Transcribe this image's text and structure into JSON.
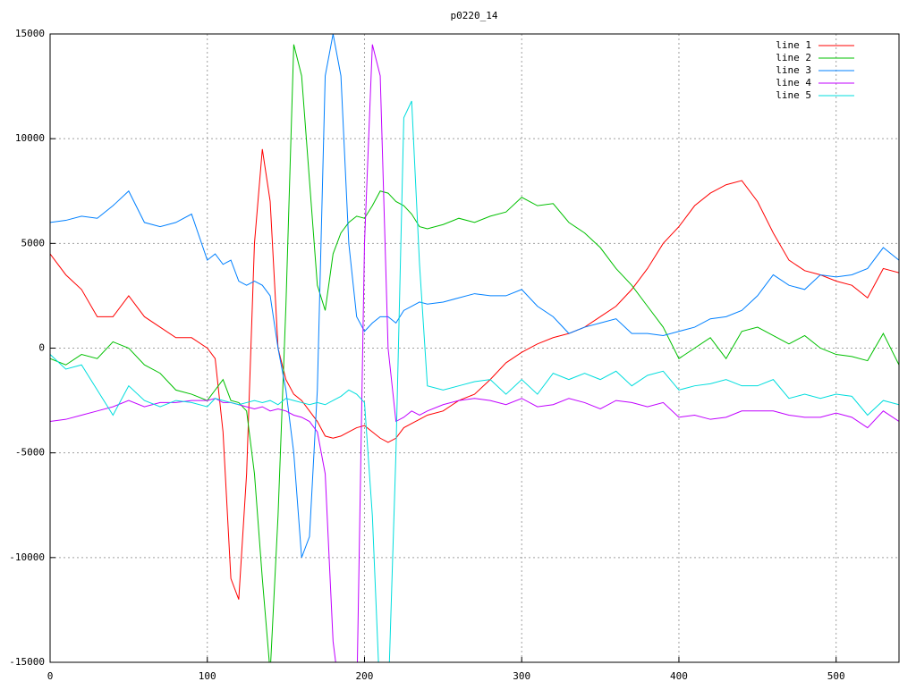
{
  "chart_data": {
    "type": "line",
    "title": "p0220_14",
    "x": [
      0,
      10,
      20,
      30,
      40,
      50,
      60,
      70,
      80,
      90,
      100,
      105,
      110,
      115,
      120,
      125,
      130,
      135,
      140,
      145,
      150,
      155,
      160,
      165,
      170,
      175,
      180,
      185,
      190,
      195,
      200,
      205,
      210,
      215,
      220,
      225,
      230,
      235,
      240,
      250,
      260,
      270,
      280,
      290,
      300,
      310,
      320,
      330,
      340,
      350,
      360,
      370,
      380,
      390,
      400,
      410,
      420,
      430,
      440,
      450,
      460,
      470,
      480,
      490,
      500,
      510,
      520,
      530,
      540
    ],
    "series": [
      {
        "name": "line 1",
        "color": "#ff0000",
        "values": [
          4500,
          3500,
          2800,
          1500,
          1500,
          2500,
          1500,
          1000,
          500,
          500,
          0,
          -500,
          -4000,
          -11000,
          -12000,
          -6000,
          5000,
          9500,
          7000,
          0,
          -1500,
          -2200,
          -2500,
          -3000,
          -3500,
          -4200,
          -4300,
          -4200,
          -4000,
          -3800,
          -3700,
          -4000,
          -4300,
          -4500,
          -4300,
          -3800,
          -3600,
          -3400,
          -3200,
          -3000,
          -2500,
          -2200,
          -1500,
          -700,
          -200,
          200,
          500,
          700,
          1000,
          1500,
          2000,
          2800,
          3800,
          5000,
          5800,
          6800,
          7400,
          7800,
          8000,
          7000,
          5500,
          4200,
          3700,
          3500,
          3200,
          3000,
          2400,
          3800,
          3600
        ]
      },
      {
        "name": "line 2",
        "color": "#00c000",
        "values": [
          -500,
          -800,
          -300,
          -500,
          300,
          0,
          -800,
          -1200,
          -2000,
          -2200,
          -2500,
          -2000,
          -1500,
          -2500,
          -2600,
          -3000,
          -6000,
          -11000,
          -15500,
          -8000,
          2000,
          14500,
          13000,
          8000,
          3000,
          1800,
          4500,
          5500,
          6000,
          6300,
          6200,
          6800,
          7500,
          7400,
          7000,
          6800,
          6400,
          5800,
          5700,
          5900,
          6200,
          6000,
          6300,
          6500,
          7200,
          6800,
          6900,
          6000,
          5500,
          4800,
          3800,
          3000,
          2000,
          1000,
          -500,
          0,
          500,
          -500,
          800,
          1000,
          600,
          200,
          600,
          0,
          -300,
          -400,
          -600,
          700,
          -800
        ]
      },
      {
        "name": "line 3",
        "color": "#0080ff",
        "values": [
          6000,
          6100,
          6300,
          6200,
          6800,
          7500,
          6000,
          5800,
          6000,
          6400,
          4200,
          4500,
          4000,
          4200,
          3200,
          3000,
          3200,
          3000,
          2500,
          0,
          -2000,
          -5000,
          -10000,
          -9000,
          -2000,
          13000,
          15000,
          13000,
          5000,
          1500,
          800,
          1200,
          1500,
          1500,
          1200,
          1800,
          2000,
          2200,
          2100,
          2200,
          2400,
          2600,
          2500,
          2500,
          2800,
          2000,
          1500,
          700,
          1000,
          1200,
          1400,
          700,
          700,
          600,
          800,
          1000,
          1400,
          1500,
          1800,
          2500,
          3500,
          3000,
          2800,
          3500,
          3400,
          3500,
          3800,
          4800,
          4200
        ]
      },
      {
        "name": "line 4",
        "color": "#c000ff",
        "values": [
          -3500,
          -3400,
          -3200,
          -3000,
          -2800,
          -2500,
          -2800,
          -2600,
          -2600,
          -2500,
          -2500,
          -2400,
          -2600,
          -2600,
          -2700,
          -2800,
          -2900,
          -2800,
          -3000,
          -2900,
          -3000,
          -3200,
          -3300,
          -3500,
          -4000,
          -6000,
          -14000,
          -17000,
          -15000,
          -17000,
          5000,
          14500,
          13000,
          0,
          -3500,
          -3300,
          -3000,
          -3200,
          -3000,
          -2700,
          -2500,
          -2400,
          -2500,
          -2700,
          -2400,
          -2800,
          -2700,
          -2400,
          -2600,
          -2900,
          -2500,
          -2600,
          -2800,
          -2600,
          -3300,
          -3200,
          -3400,
          -3300,
          -3000,
          -3000,
          -3000,
          -3200,
          -3300,
          -3300,
          -3100,
          -3300,
          -3800,
          -3000,
          -3500
        ]
      },
      {
        "name": "line 5",
        "color": "#00dddd",
        "values": [
          -300,
          -1000,
          -800,
          -2000,
          -3200,
          -1800,
          -2500,
          -2800,
          -2500,
          -2600,
          -2800,
          -2400,
          -2500,
          -2600,
          -2700,
          -2600,
          -2500,
          -2600,
          -2500,
          -2700,
          -2400,
          -2500,
          -2600,
          -2700,
          -2600,
          -2700,
          -2500,
          -2300,
          -2000,
          -2200,
          -2600,
          -8000,
          -17000,
          -17000,
          -5000,
          11000,
          11800,
          4000,
          -1800,
          -2000,
          -1800,
          -1600,
          -1500,
          -2200,
          -1500,
          -2200,
          -1200,
          -1500,
          -1200,
          -1500,
          -1100,
          -1800,
          -1300,
          -1100,
          -2000,
          -1800,
          -1700,
          -1500,
          -1800,
          -1800,
          -1500,
          -2400,
          -2200,
          -2400,
          -2200,
          -2300,
          -3200,
          -2500,
          -2700
        ]
      }
    ],
    "xlim": [
      0,
      540
    ],
    "ylim": [
      -15000,
      15000
    ],
    "xticks": [
      0,
      100,
      200,
      300,
      400,
      500
    ],
    "yticks": [
      -15000,
      -10000,
      -5000,
      0,
      5000,
      10000,
      15000
    ],
    "grid": true,
    "legend": "top-right"
  }
}
